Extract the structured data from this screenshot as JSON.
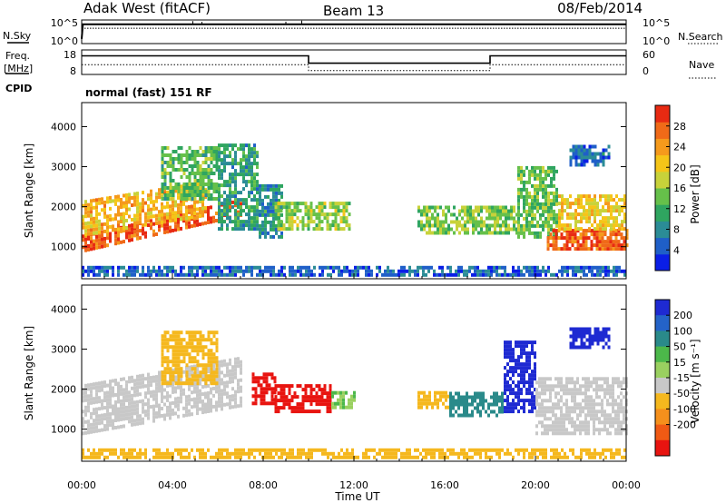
{
  "header": {
    "station": "Adak West (fitACF)",
    "beam": "Beam 13",
    "date": "08/Feb/2014"
  },
  "side_labels": {
    "nsky": "N.Sky",
    "nsearch": "N.Search",
    "freq_line1": "Freq.",
    "freq_line2": "[MHz]",
    "nave": "Nave",
    "cpid": "CPID"
  },
  "cpid_text": "normal (fast) 151 RF",
  "noise_axis": {
    "ticks": [
      "10^5",
      "10^0"
    ]
  },
  "freq_axis": {
    "left_ticks": [
      "18",
      "8"
    ],
    "right_ticks": [
      "60",
      "0"
    ]
  },
  "chart_data": [
    {
      "type": "line",
      "name": "noise",
      "x_units": "hours UT",
      "series": [
        {
          "name": "N.Sky",
          "x": [
            0,
            0.05,
            24
          ],
          "y": [
            0.2,
            0.82,
            0.82
          ]
        },
        {
          "name": "N.Search",
          "x": [
            0,
            24
          ],
          "y": [
            0.65,
            0.65
          ]
        }
      ],
      "spikes": [
        {
          "x": 4.9,
          "y": 0.95
        },
        {
          "x": 5.3,
          "y": 0.92
        },
        {
          "x": 9.0,
          "y": 0.93
        },
        {
          "x": 9.7,
          "y": 0.97
        }
      ]
    },
    {
      "type": "line",
      "name": "frequency",
      "x_units": "hours UT",
      "ylim": [
        8,
        18
      ],
      "series": [
        {
          "name": "Freq",
          "x": [
            0,
            10,
            10,
            18,
            18,
            24
          ],
          "y": [
            15.6,
            15.6,
            12.6,
            12.6,
            15.6,
            15.6
          ]
        },
        {
          "name": "Nave",
          "x": [
            0,
            10,
            10,
            18,
            18,
            24
          ],
          "y": [
            12,
            12,
            9.6,
            9.6,
            12,
            12
          ]
        }
      ]
    },
    {
      "type": "heatmap",
      "name": "power",
      "xlabel": "",
      "ylabel": "Slant Range [km]",
      "xlim": [
        0,
        24
      ],
      "ylim": [
        200,
        4600
      ],
      "yticks": [
        1000,
        2000,
        3000,
        4000
      ],
      "colorbar": {
        "label": "Power [dB]",
        "range": [
          0,
          32
        ],
        "ticks": [
          4,
          8,
          12,
          16,
          20,
          24,
          28
        ],
        "colors": [
          "#0a1ee6",
          "#1f5fc8",
          "#2b8c96",
          "#2fa560",
          "#66c04a",
          "#c8d23a",
          "#f5c518",
          "#f59a1c",
          "#f06a18",
          "#e82a12"
        ]
      },
      "regions": [
        {
          "t0": 0,
          "t1": 7.0,
          "r0": 850,
          "r1": 1250,
          "v": 28,
          "rise": 900
        },
        {
          "t0": 0,
          "t1": 5.5,
          "r0": 1250,
          "r1": 2150,
          "v": 22,
          "rise": 500
        },
        {
          "t0": 3.5,
          "t1": 6.0,
          "r0": 2150,
          "r1": 3500,
          "v": 13,
          "rise": 0
        },
        {
          "t0": 6.0,
          "t1": 7.8,
          "r0": 1400,
          "r1": 3500,
          "v": 10,
          "rise": 0
        },
        {
          "t0": 7.8,
          "t1": 8.8,
          "r0": 1200,
          "r1": 2500,
          "v": 9,
          "rise": 0
        },
        {
          "t0": 8.5,
          "t1": 11.8,
          "r0": 1400,
          "r1": 2100,
          "v": 16,
          "rise": 0
        },
        {
          "t0": 14.8,
          "t1": 19.2,
          "r0": 1300,
          "r1": 2000,
          "v": 15,
          "rise": 0
        },
        {
          "t0": 19.2,
          "t1": 21.0,
          "r0": 1200,
          "r1": 3000,
          "v": 14,
          "rise": 0
        },
        {
          "t0": 20.5,
          "t1": 24,
          "r0": 900,
          "r1": 1400,
          "v": 28,
          "rise": 0
        },
        {
          "t0": 21.0,
          "t1": 24,
          "r0": 1400,
          "r1": 2300,
          "v": 20,
          "rise": 0
        },
        {
          "t0": 21.5,
          "t1": 23.2,
          "r0": 3000,
          "r1": 3500,
          "v": 6,
          "rise": 0
        },
        {
          "t0": 0,
          "t1": 24,
          "r0": 250,
          "r1": 500,
          "v": 5,
          "rise": 0
        }
      ]
    },
    {
      "type": "heatmap",
      "name": "velocity",
      "xlabel": "Time UT",
      "ylabel": "Slant Range [km]",
      "xlim": [
        0,
        24
      ],
      "ylim": [
        200,
        4600
      ],
      "yticks": [
        1000,
        2000,
        3000,
        4000
      ],
      "xticks": [
        "00:00",
        "04:00",
        "08:00",
        "12:00",
        "16:00",
        "20:00",
        "00:00"
      ],
      "colorbar": {
        "label": "Velocity [m s⁻¹]",
        "ticks": [
          "200",
          "100",
          "50",
          "15",
          "-15",
          "-50",
          "-100",
          "-200"
        ],
        "colors": [
          "#1e2ad2",
          "#2463c8",
          "#2a8a8a",
          "#4cb84a",
          "#9ad060",
          "#c8c8c8",
          "#f5b81e",
          "#f5901c",
          "#f05a14",
          "#e81410"
        ]
      },
      "regions": [
        {
          "t0": 0,
          "t1": 7.0,
          "r0": 850,
          "r1": 2100,
          "v": 0,
          "rise": 700
        },
        {
          "t0": 3.5,
          "t1": 6.0,
          "r0": 2100,
          "r1": 3400,
          "v": -30,
          "rise": 0
        },
        {
          "t0": 7.5,
          "t1": 8.5,
          "r0": 1600,
          "r1": 2400,
          "v": -190,
          "rise": 0
        },
        {
          "t0": 8.5,
          "t1": 11.0,
          "r0": 1400,
          "r1": 2100,
          "v": -190,
          "rise": 0
        },
        {
          "t0": 11.0,
          "t1": 12.0,
          "r0": 1500,
          "r1": 1900,
          "v": 30,
          "rise": 0
        },
        {
          "t0": 14.8,
          "t1": 16.2,
          "r0": 1500,
          "r1": 1950,
          "v": -40,
          "rise": 0
        },
        {
          "t0": 16.2,
          "t1": 18.6,
          "r0": 1300,
          "r1": 1900,
          "v": 70,
          "rise": 0
        },
        {
          "t0": 18.6,
          "t1": 20.0,
          "r0": 1400,
          "r1": 3200,
          "v": 190,
          "rise": 0
        },
        {
          "t0": 20.0,
          "t1": 24,
          "r0": 850,
          "r1": 2300,
          "v": 0,
          "rise": 0
        },
        {
          "t0": 21.5,
          "t1": 23.2,
          "r0": 3000,
          "r1": 3500,
          "v": 190,
          "rise": 0
        },
        {
          "t0": 0,
          "t1": 24,
          "r0": 250,
          "r1": 450,
          "v": -30,
          "rise": 0
        }
      ]
    }
  ]
}
